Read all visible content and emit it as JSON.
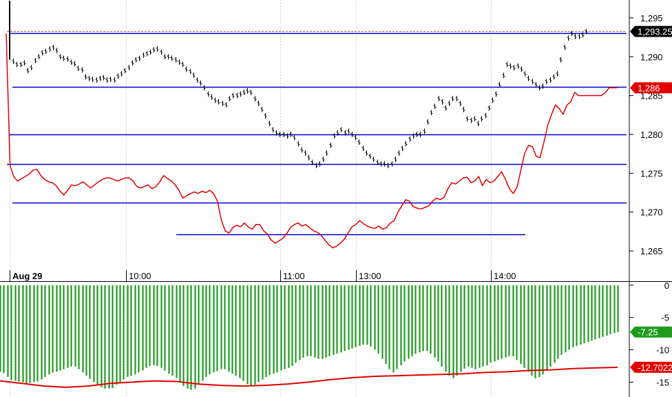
{
  "colors": {
    "price_bar": "#000000",
    "red_line": "#e00000",
    "hline": "#0000c8",
    "histogram": "#1f9a1f",
    "grid": "#d0d0d0",
    "badge_price": "#000000",
    "badge_red": "#e00000",
    "badge_green": "#1f9a1f"
  },
  "chart_data": [
    {
      "type": "line",
      "panel": "price",
      "date_label": "Aug 29",
      "x_labels": [
        "10:00",
        "11:00",
        "13:00",
        "14:00"
      ],
      "y_ticks": [
        "1,295",
        "1,290",
        "1,285",
        "1,280",
        "1,275",
        "1,270",
        "1,265"
      ],
      "ylim": [
        1262.7,
        1297.3
      ],
      "last_price_label": "1,293.25",
      "red_last_label": "1,286",
      "last_price": 1293.25,
      "horizontal_lines": [
        1293.0,
        1286.1,
        1280.0,
        1276.2,
        1271.2,
        1267.1
      ],
      "series": [
        {
          "style": "bars",
          "values": [
            1297.0,
            1289.4,
            1289.0,
            1289.0,
            1289.2,
            1288.2,
            1288.6,
            1289.5,
            1290.0,
            1290.5,
            1290.7,
            1291.0,
            1291.2,
            1290.8,
            1290.0,
            1289.8,
            1289.7,
            1289.3,
            1289.1,
            1288.5,
            1288.3,
            1287.4,
            1287.2,
            1287.1,
            1287.0,
            1287.2,
            1287.3,
            1287.0,
            1287.1,
            1287.0,
            1287.5,
            1287.8,
            1288.2,
            1288.6,
            1289.2,
            1289.6,
            1289.8,
            1290.2,
            1290.4,
            1290.6,
            1290.9,
            1291.0,
            1290.6,
            1290.0,
            1290.0,
            1289.8,
            1289.6,
            1289.3,
            1289.0,
            1288.4,
            1288.1,
            1287.6,
            1287.0,
            1286.6,
            1286.0,
            1285.2,
            1284.8,
            1284.4,
            1284.2,
            1284.0,
            1283.8,
            1284.6,
            1285.0,
            1285.0,
            1285.2,
            1285.4,
            1285.6,
            1285.4,
            1284.6,
            1284.0,
            1283.2,
            1282.4,
            1281.4,
            1280.6,
            1280.2,
            1280.0,
            1280.0,
            1279.8,
            1280.0,
            1279.6,
            1278.8,
            1278.0,
            1277.6,
            1277.0,
            1276.4,
            1276.0,
            1276.2,
            1276.8,
            1277.6,
            1278.6,
            1279.8,
            1280.2,
            1280.6,
            1280.2,
            1280.4,
            1280.0,
            1279.6,
            1279.0,
            1278.2,
            1277.6,
            1277.2,
            1276.8,
            1276.4,
            1276.2,
            1276.2,
            1276.0,
            1276.2,
            1276.8,
            1277.6,
            1278.2,
            1278.8,
            1279.4,
            1279.8,
            1280.0,
            1280.0,
            1280.4,
            1281.6,
            1282.8,
            1283.6,
            1284.6,
            1284.2,
            1283.4,
            1284.0,
            1284.6,
            1284.6,
            1284.0,
            1283.2,
            1282.0,
            1281.8,
            1282.0,
            1281.4,
            1282.0,
            1282.4,
            1283.4,
            1284.4,
            1285.2,
            1286.4,
            1287.6,
            1289.0,
            1288.8,
            1288.6,
            1288.8,
            1288.4,
            1287.8,
            1287.2,
            1286.8,
            1286.4,
            1286.0,
            1286.2,
            1286.8,
            1287.0,
            1287.4,
            1287.8,
            1289.6,
            1291.2,
            1292.4,
            1293.0,
            1292.6,
            1292.6,
            1292.8,
            1293.25
          ]
        },
        {
          "style": "line",
          "values": [
            1293.0,
            1276.0,
            1274.5,
            1274.0,
            1274.3,
            1274.6,
            1274.9,
            1275.4,
            1275.5,
            1274.7,
            1274.2,
            1273.9,
            1273.8,
            1273.4,
            1272.7,
            1272.2,
            1272.8,
            1273.5,
            1273.4,
            1273.6,
            1273.9,
            1273.5,
            1273.1,
            1273.5,
            1273.9,
            1274.2,
            1274.4,
            1274.4,
            1274.2,
            1274.0,
            1274.2,
            1274.4,
            1274.4,
            1274.0,
            1273.3,
            1273.1,
            1273.3,
            1273.5,
            1273.0,
            1273.3,
            1273.9,
            1274.7,
            1274.3,
            1274.0,
            1273.5,
            1272.8,
            1271.8,
            1272.1,
            1272.4,
            1272.6,
            1272.4,
            1272.7,
            1272.5,
            1272.8,
            1272.4,
            1271.4,
            1269.0,
            1267.6,
            1267.3,
            1268.0,
            1268.3,
            1268.1,
            1268.6,
            1268.1,
            1267.8,
            1268.4,
            1268.4,
            1267.6,
            1267.2,
            1266.4,
            1266.0,
            1266.3,
            1266.6,
            1267.2,
            1268.0,
            1268.4,
            1268.6,
            1268.2,
            1268.4,
            1268.0,
            1267.6,
            1267.4,
            1267.0,
            1266.4,
            1265.8,
            1265.4,
            1265.6,
            1266.0,
            1266.5,
            1267.3,
            1268.1,
            1268.4,
            1268.9,
            1268.5,
            1268.2,
            1268.0,
            1267.9,
            1268.2,
            1267.8,
            1268.0,
            1268.6,
            1268.9,
            1270.0,
            1270.8,
            1271.6,
            1271.4,
            1270.7,
            1270.5,
            1270.4,
            1270.6,
            1270.8,
            1271.4,
            1271.8,
            1271.6,
            1271.9,
            1273.0,
            1273.8,
            1273.6,
            1274.0,
            1274.4,
            1274.5,
            1273.8,
            1274.0,
            1274.6,
            1273.4,
            1274.2,
            1273.8,
            1274.0,
            1274.6,
            1275.2,
            1274.2,
            1273.0,
            1272.4,
            1273.2,
            1275.4,
            1277.6,
            1278.6,
            1278.4,
            1277.2,
            1277.0,
            1279.0,
            1281.2,
            1282.6,
            1283.8,
            1283.3,
            1282.6,
            1283.8,
            1284.2,
            1285.4,
            1285.0,
            1285.0,
            1285.0,
            1285.0,
            1285.0,
            1285.0,
            1285.0,
            1285.4,
            1286.0,
            1286.0,
            1286.0
          ]
        }
      ]
    },
    {
      "type": "bar",
      "panel": "indicator",
      "y_ticks": [
        "0",
        "-5",
        "-10",
        "-15"
      ],
      "ylim": [
        -17.3,
        0.4
      ],
      "green_last_label": "-7.25",
      "red_last_label": "-12.7022",
      "series": [
        {
          "style": "histogram",
          "values": [
            -13.4,
            -13.6,
            -14.2,
            -14.7,
            -14.8,
            -14.9,
            -15.0,
            -15.2,
            -15.1,
            -15.0,
            -14.9,
            -14.6,
            -14.2,
            -13.8,
            -13.5,
            -13.4,
            -13.2,
            -13.0,
            -12.8,
            -12.6,
            -12.6,
            -13.0,
            -13.5,
            -14.0,
            -14.5,
            -15.0,
            -15.4,
            -15.8,
            -16.0,
            -16.0,
            -15.9,
            -15.4,
            -15.0,
            -14.6,
            -14.2,
            -14.0,
            -13.8,
            -13.5,
            -13.2,
            -12.8,
            -12.5,
            -12.4,
            -12.5,
            -12.8,
            -13.2,
            -13.7,
            -14.0,
            -14.4,
            -14.9,
            -15.6,
            -16.0,
            -16.2,
            -16.0,
            -15.4,
            -14.8,
            -14.2,
            -13.8,
            -13.5,
            -13.3,
            -13.0,
            -13.0,
            -13.4,
            -13.7,
            -14.0,
            -14.4,
            -14.8,
            -15.3,
            -15.6,
            -15.4,
            -15.0,
            -14.6,
            -14.2,
            -13.9,
            -13.7,
            -13.5,
            -13.2,
            -13.0,
            -12.8,
            -12.5,
            -12.0,
            -11.6,
            -11.2,
            -11.0,
            -11.0,
            -11.2,
            -11.4,
            -11.4,
            -11.2,
            -11.0,
            -10.8,
            -10.6,
            -10.4,
            -10.2,
            -10.0,
            -9.8,
            -9.6,
            -9.4,
            -9.2,
            -9.2,
            -9.5,
            -10.0,
            -10.6,
            -11.4,
            -12.2,
            -13.0,
            -13.5,
            -13.0,
            -12.4,
            -11.8,
            -11.4,
            -11.0,
            -10.6,
            -10.4,
            -10.2,
            -10.2,
            -10.6,
            -11.2,
            -11.8,
            -12.6,
            -13.4,
            -14.0,
            -14.4,
            -14.0,
            -13.4,
            -12.9,
            -12.6,
            -12.8,
            -13.0,
            -12.8,
            -12.6,
            -12.4,
            -12.0,
            -11.8,
            -11.6,
            -11.4,
            -11.2,
            -11.0,
            -11.0,
            -11.6,
            -12.2,
            -12.8,
            -13.4,
            -14.0,
            -14.4,
            -14.2,
            -13.8,
            -13.2,
            -12.6,
            -12.0,
            -11.4,
            -10.8,
            -10.4,
            -10.0,
            -9.6,
            -9.4,
            -9.2,
            -9.0,
            -8.8,
            -8.6,
            -8.4,
            -8.2,
            -8.0,
            -7.8,
            -7.6,
            -7.4,
            -7.25
          ]
        },
        {
          "style": "line",
          "values": [
            -14.8,
            -15.2,
            -15.6,
            -15.8,
            -15.6,
            -15.2,
            -15.0,
            -14.8,
            -14.9,
            -15.3,
            -15.5,
            -15.6,
            -15.5,
            -15.3,
            -15.0,
            -14.6,
            -14.3,
            -14.1,
            -14.0,
            -13.9,
            -13.8,
            -13.7,
            -13.5,
            -13.4,
            -13.2,
            -13.1,
            -12.9,
            -12.8,
            -12.7022
          ]
        }
      ]
    }
  ]
}
